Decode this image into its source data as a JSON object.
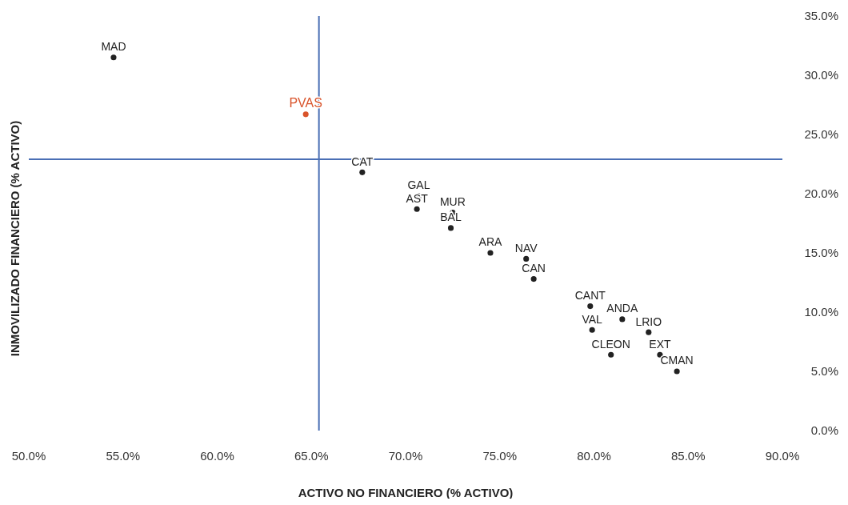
{
  "chart_data": {
    "type": "scatter",
    "xlabel": "ACTIVO NO FINANCIERO (% ACTIVO)",
    "ylabel": "INMOVILIZADO FINANCIERO (% ACTIVO)",
    "series": [
      {
        "color": "#222222",
        "x": [
          54.5,
          67.7,
          70.7,
          70.6,
          72.5,
          72.4,
          74.5,
          76.4,
          76.8,
          79.8,
          81.5,
          79.9,
          82.9,
          80.9,
          83.5,
          84.4
        ],
        "values": [
          31.5,
          21.8,
          19.8,
          18.7,
          18.4,
          17.1,
          15.0,
          14.5,
          12.8,
          10.5,
          9.4,
          8.5,
          8.3,
          6.4,
          6.4,
          5.0
        ],
        "value_labels": [
          "MAD",
          "CAT",
          "GAL",
          "AST",
          "MUR",
          "BAL",
          "ARA",
          "NAV",
          "CAN",
          "CANT",
          "ANDA",
          "VAL",
          "LRIO",
          "CLEON",
          "EXT",
          "CMAN"
        ]
      },
      {
        "color": "#d9542b",
        "x": [
          64.7
        ],
        "values": [
          26.7
        ],
        "value_labels": [
          "PVAS"
        ]
      }
    ],
    "xlim": [
      50,
      90
    ],
    "xticks": [
      {
        "value": 50,
        "label": "50.0%"
      },
      {
        "value": 55,
        "label": "55.0%"
      },
      {
        "value": 60,
        "label": "60.0%"
      },
      {
        "value": 65,
        "label": "65.0%"
      },
      {
        "value": 70,
        "label": "70.0%"
      },
      {
        "value": 75,
        "label": "75.0%"
      },
      {
        "value": 80,
        "label": "80.0%"
      },
      {
        "value": 85,
        "label": "85.0%"
      },
      {
        "value": 90,
        "label": "90.0%"
      }
    ],
    "ylim": [
      0,
      35
    ],
    "yticks": [
      {
        "value": 0,
        "label": "0.0%"
      },
      {
        "value": 5,
        "label": "5.0%"
      },
      {
        "value": 10,
        "label": "10.0%"
      },
      {
        "value": 15,
        "label": "15.0%"
      },
      {
        "value": 20,
        "label": "20.0%"
      },
      {
        "value": 25,
        "label": "25.0%"
      },
      {
        "value": 30,
        "label": "30.0%"
      },
      {
        "value": 35,
        "label": "35.0%"
      }
    ],
    "ref_lines": [
      {
        "axis": "x",
        "value": 65.4,
        "color": "#4a6fb5"
      },
      {
        "axis": "y",
        "value": 22.9,
        "color": "#4a6fb5"
      }
    ],
    "marker": "circle"
  }
}
